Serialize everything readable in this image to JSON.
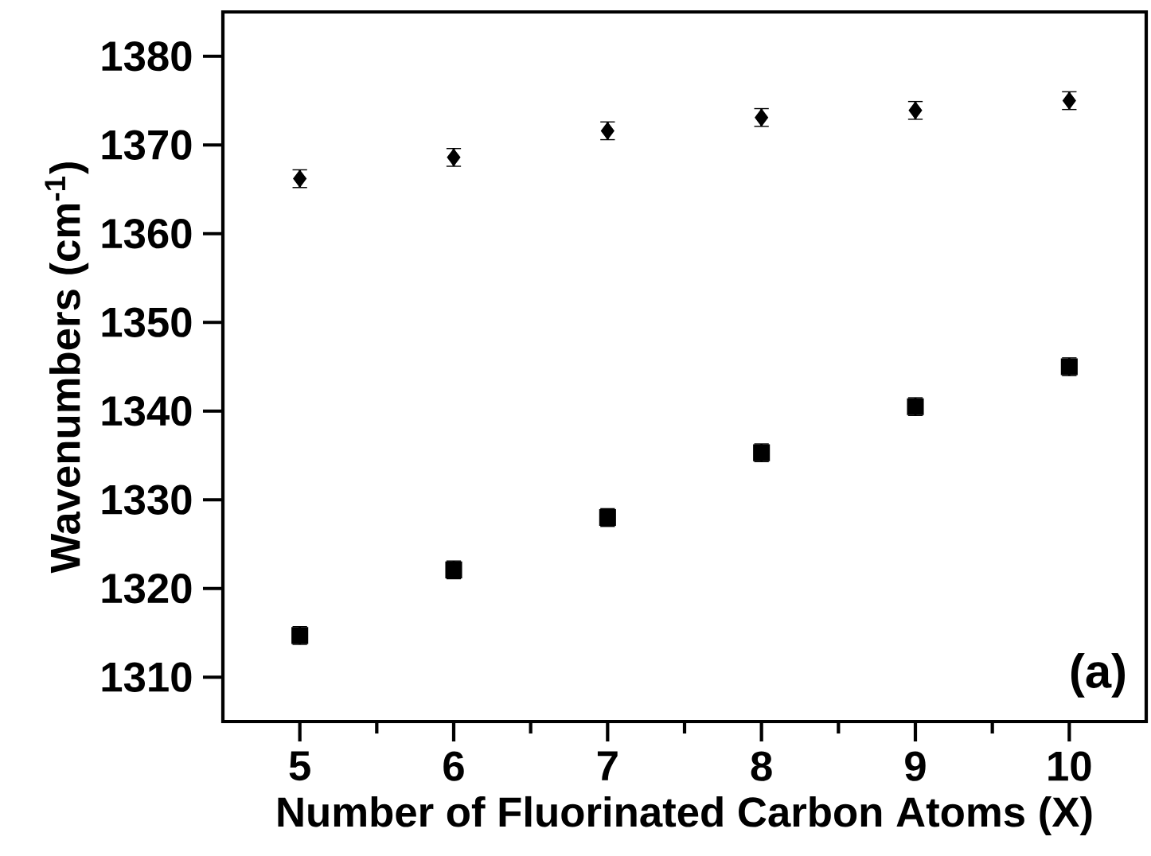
{
  "chart_data": {
    "type": "scatter",
    "xlabel": "Number of Fluorinated Carbon Atoms (X)",
    "ylabel": "Wavenumbers (cm$^{-1}$)",
    "x": [
      5,
      6,
      7,
      8,
      9,
      10
    ],
    "series": [
      {
        "color": "#000000",
        "marker": "diamond",
        "values": [
          1366.2,
          1368.6,
          1371.6,
          1373.1,
          1373.9,
          1375.0
        ],
        "errors": [
          1,
          1,
          1,
          1,
          1,
          1
        ]
      },
      {
        "color": "#000000",
        "marker": "square",
        "values": [
          1314.7,
          1322.1,
          1328.0,
          1335.3,
          1340.5,
          1345.0
        ],
        "errors": [
          1,
          1,
          1,
          1,
          1,
          1
        ]
      }
    ],
    "xlim": [
      4.5,
      10.5
    ],
    "ylim": [
      1305,
      1385
    ],
    "xticks": [
      5,
      6,
      7,
      8,
      9,
      10
    ],
    "yticks": [
      1310,
      1320,
      1330,
      1340,
      1350,
      1360,
      1370,
      1380
    ],
    "annotations": [
      "(a)"
    ],
    "grid": false
  }
}
